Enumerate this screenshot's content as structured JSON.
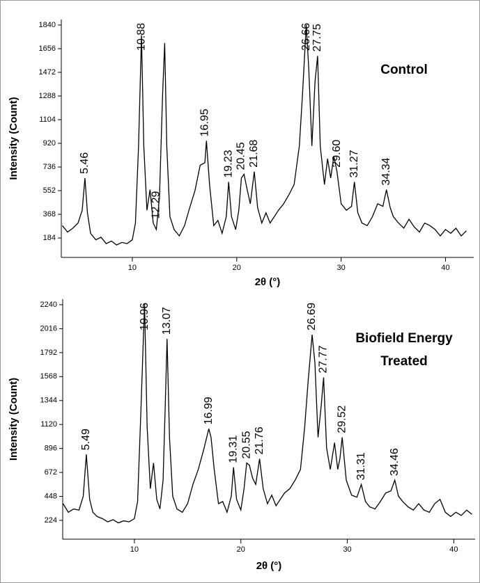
{
  "chart_data": [
    {
      "type": "line",
      "ylabel": "Intensity (Count)",
      "xlabel": "2θ (°)",
      "annotation": [
        "Control"
      ],
      "color": "#000000",
      "xlim": [
        3.2,
        42.7
      ],
      "ylim": [
        33,
        1883
      ],
      "xticks": [
        10,
        20,
        30,
        40
      ],
      "yticks": [
        184,
        368,
        552,
        736,
        920,
        1104,
        1288,
        1472,
        1656,
        1840
      ],
      "peaks": [
        5.46,
        10.88,
        12.29,
        16.95,
        19.23,
        20.45,
        21.68,
        26.66,
        27.75,
        {
          "value": 29.6,
          "label": "29.60"
        },
        31.27,
        34.34
      ],
      "x": [
        3.3,
        3.8,
        4.3,
        4.8,
        5.2,
        5.46,
        5.7,
        6.0,
        6.5,
        7,
        7.5,
        8,
        8.5,
        9,
        9.5,
        10,
        10.3,
        10.6,
        10.88,
        11.1,
        11.4,
        11.7,
        12.0,
        12.3,
        12.6,
        12.9,
        13.1,
        13.3,
        13.6,
        14,
        14.5,
        15,
        15.5,
        16,
        16.5,
        16.95,
        17.1,
        17.4,
        17.8,
        18.2,
        18.6,
        19,
        19.23,
        19.5,
        19.9,
        20.2,
        20.45,
        20.7,
        21,
        21.3,
        21.68,
        22,
        22.4,
        22.8,
        23.2,
        23.6,
        24,
        24.5,
        25,
        25.5,
        26,
        26.3,
        26.66,
        26.9,
        27.2,
        27.5,
        27.75,
        28,
        28.4,
        28.7,
        29,
        29.3,
        29.6,
        30,
        30.5,
        31,
        31.27,
        31.6,
        32,
        32.5,
        33,
        33.5,
        34,
        34.34,
        34.7,
        35,
        35.5,
        36,
        36.5,
        37,
        37.5,
        38,
        38.5,
        39,
        39.5,
        40,
        40.5,
        41,
        41.5,
        42
      ],
      "values": [
        280,
        230,
        260,
        300,
        400,
        650,
        380,
        220,
        170,
        190,
        140,
        160,
        130,
        150,
        140,
        170,
        300,
        900,
        1760,
        900,
        400,
        560,
        300,
        250,
        500,
        1300,
        1700,
        900,
        350,
        250,
        200,
        280,
        420,
        550,
        750,
        770,
        940,
        600,
        280,
        320,
        220,
        350,
        620,
        350,
        250,
        400,
        650,
        680,
        560,
        450,
        700,
        420,
        300,
        380,
        300,
        350,
        400,
        450,
        520,
        600,
        900,
        1300,
        1840,
        1500,
        900,
        1400,
        1600,
        900,
        600,
        800,
        650,
        820,
        700,
        450,
        400,
        430,
        620,
        380,
        300,
        280,
        350,
        450,
        430,
        560,
        420,
        350,
        300,
        260,
        330,
        270,
        230,
        300,
        280,
        250,
        200,
        250,
        220,
        260,
        200,
        240
      ]
    },
    {
      "type": "line",
      "ylabel": "Intensity (Count)",
      "xlabel": "2θ (°)",
      "annotation": [
        "Biofield Energy",
        "Treated"
      ],
      "color": "#000000",
      "xlim": [
        3.27,
        42.0
      ],
      "ylim": [
        48,
        2292
      ],
      "xticks": [
        10,
        20,
        30,
        40
      ],
      "yticks": [
        224,
        448,
        672,
        896,
        1120,
        1344,
        1568,
        1792,
        2016,
        2240
      ],
      "peaks": [
        5.49,
        10.96,
        13.07,
        16.99,
        19.31,
        20.55,
        21.76,
        26.69,
        27.77,
        29.52,
        31.31,
        34.46
      ],
      "x": [
        3.3,
        3.8,
        4.3,
        4.8,
        5.2,
        5.49,
        5.8,
        6.1,
        6.5,
        7,
        7.5,
        8,
        8.5,
        9,
        9.5,
        10,
        10.3,
        10.6,
        10.96,
        11.2,
        11.5,
        11.8,
        12.1,
        12.4,
        12.7,
        12.9,
        13.07,
        13.3,
        13.6,
        14,
        14.5,
        15,
        15.5,
        16,
        16.5,
        16.99,
        17.2,
        17.5,
        17.9,
        18.3,
        18.7,
        19.1,
        19.31,
        19.6,
        20,
        20.3,
        20.55,
        20.8,
        21.1,
        21.4,
        21.76,
        22.1,
        22.5,
        22.9,
        23.3,
        23.7,
        24.1,
        24.6,
        25.1,
        25.6,
        26,
        26.3,
        26.69,
        26.95,
        27.25,
        27.55,
        27.77,
        28.05,
        28.4,
        28.8,
        29.1,
        29.3,
        29.52,
        29.9,
        30.4,
        30.9,
        31.31,
        31.7,
        32.1,
        32.6,
        33.1,
        33.6,
        34.1,
        34.46,
        34.8,
        35.2,
        35.7,
        36.2,
        36.7,
        37.2,
        37.7,
        38.2,
        38.7,
        39.2,
        39.7,
        40.2,
        40.7,
        41.2,
        41.7
      ],
      "values": [
        380,
        300,
        330,
        320,
        450,
        840,
        420,
        300,
        260,
        240,
        210,
        230,
        200,
        220,
        210,
        240,
        400,
        1200,
        2250,
        1100,
        520,
        760,
        420,
        330,
        600,
        1300,
        1920,
        1000,
        450,
        330,
        300,
        380,
        560,
        700,
        880,
        1080,
        1000,
        700,
        380,
        400,
        300,
        450,
        720,
        420,
        320,
        520,
        760,
        740,
        620,
        560,
        800,
        520,
        380,
        460,
        360,
        420,
        480,
        520,
        600,
        700,
        1100,
        1500,
        1960,
        1700,
        1000,
        1300,
        1560,
        900,
        700,
        950,
        700,
        800,
        1000,
        600,
        460,
        440,
        560,
        400,
        350,
        330,
        400,
        480,
        500,
        600,
        450,
        400,
        350,
        320,
        380,
        320,
        300,
        380,
        420,
        300,
        260,
        300,
        270,
        320,
        280
      ]
    }
  ]
}
